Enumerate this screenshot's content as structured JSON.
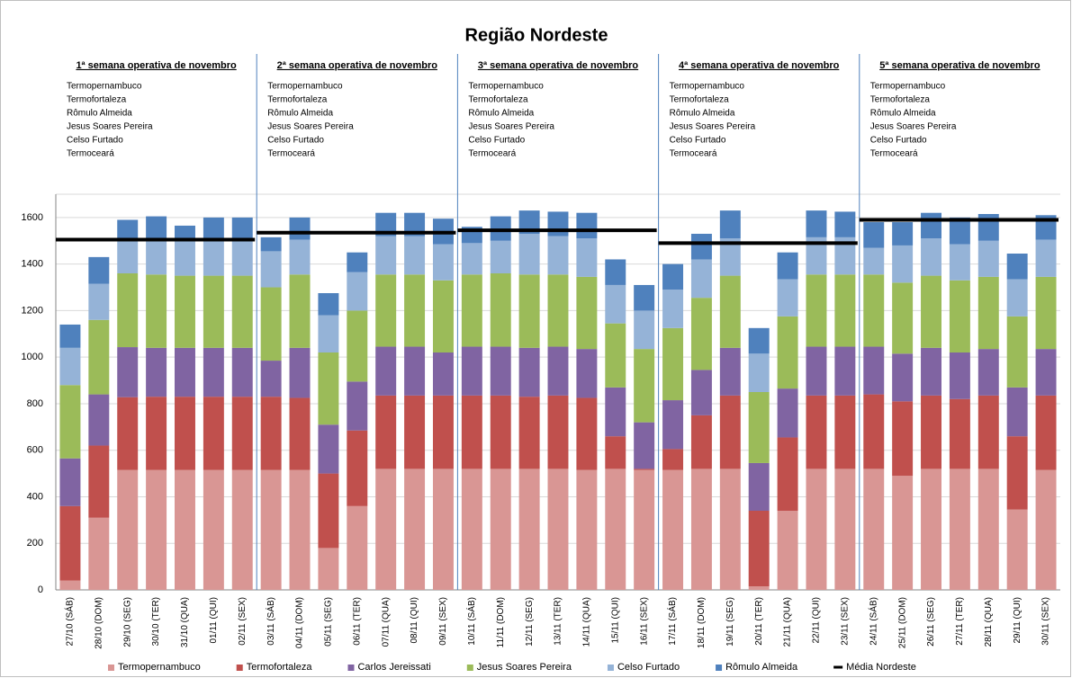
{
  "chart_data": {
    "type": "stacked_bar",
    "title": "Região Nordeste",
    "categories": [
      "27/10 (SÁB)",
      "28/10 (DOM)",
      "29/10 (SEG)",
      "30/10 (TER)",
      "31/10 (QUA)",
      "01/11 (QUI)",
      "02/11 (SEX)",
      "03/11 (SÁB)",
      "04/11 (DOM)",
      "05/11 (SEG)",
      "06/11 (TER)",
      "07/11 (QUA)",
      "08/11 (QUI)",
      "09/11 (SEX)",
      "10/11 (SÁB)",
      "11/11 (DOM)",
      "12/11 (SEG)",
      "13/11 (TER)",
      "14/11 (QUA)",
      "15/11 (QUI)",
      "16/11 (SEX)",
      "17/11 (SÁB)",
      "18/11 (DOM)",
      "19/11 (SEG)",
      "20/11 (TER)",
      "21/11 (QUA)",
      "22/11 (QUI)",
      "23/11 (SEX)",
      "24/11 (SÁB)",
      "25/11 (DOM)",
      "26/11 (SEG)",
      "27/11 (TER)",
      "28/11 (QUA)",
      "29/11 (QUI)",
      "30/11 (SEX)"
    ],
    "series": [
      {
        "name": "Termopernambuco",
        "color": "#d99694",
        "values": [
          40,
          310,
          515,
          515,
          515,
          515,
          515,
          515,
          515,
          180,
          360,
          520,
          520,
          520,
          520,
          520,
          520,
          520,
          515,
          520,
          515,
          515,
          520,
          520,
          15,
          340,
          520,
          520,
          520,
          490,
          520,
          520,
          520,
          345,
          515
        ]
      },
      {
        "name": "Termofortaleza",
        "color": "#c0504d",
        "values": [
          320,
          310,
          313,
          315,
          315,
          315,
          315,
          315,
          310,
          320,
          325,
          315,
          315,
          315,
          315,
          315,
          310,
          315,
          310,
          140,
          5,
          90,
          230,
          315,
          325,
          315,
          315,
          315,
          320,
          320,
          315,
          300,
          315,
          315,
          320
        ]
      },
      {
        "name": "Carlos Jereissati",
        "color": "#8064a2",
        "values": [
          205,
          220,
          215,
          210,
          210,
          210,
          210,
          155,
          215,
          210,
          210,
          210,
          210,
          185,
          210,
          210,
          210,
          210,
          210,
          210,
          200,
          210,
          195,
          205,
          205,
          210,
          210,
          210,
          205,
          205,
          205,
          200,
          200,
          210,
          200
        ]
      },
      {
        "name": "Jesus Soares Pereira",
        "color": "#9bbb59",
        "values": [
          315,
          320,
          317,
          315,
          310,
          310,
          310,
          315,
          315,
          310,
          305,
          310,
          310,
          310,
          310,
          315,
          315,
          310,
          310,
          275,
          315,
          310,
          310,
          310,
          305,
          310,
          310,
          310,
          310,
          305,
          310,
          310,
          310,
          305,
          310
        ]
      },
      {
        "name": "Celso Furtado",
        "color": "#95b3d7",
        "values": [
          160,
          155,
          150,
          150,
          150,
          150,
          150,
          155,
          150,
          160,
          165,
          165,
          165,
          155,
          135,
          140,
          175,
          165,
          165,
          165,
          165,
          165,
          165,
          160,
          165,
          160,
          160,
          160,
          115,
          160,
          160,
          155,
          155,
          160,
          160
        ]
      },
      {
        "name": "Rômulo Almeida",
        "color": "#4f81bd",
        "values": [
          100,
          115,
          80,
          100,
          65,
          100,
          100,
          60,
          95,
          95,
          85,
          100,
          100,
          110,
          70,
          105,
          100,
          105,
          110,
          110,
          110,
          110,
          110,
          120,
          110,
          115,
          115,
          110,
          110,
          100,
          110,
          115,
          115,
          110,
          105
        ]
      }
    ],
    "average": {
      "name": "Média Nordeste",
      "color": "#000000",
      "values": [
        1505,
        1535,
        1545,
        1490,
        1590
      ]
    },
    "weeks": [
      {
        "title": "1ª semana operativa de novembro",
        "items": [
          "Termopernambuco",
          "Termofortaleza",
          "Rômulo Almeida",
          "Jesus Soares Pereira",
          "Celso Furtado",
          "Termoceará"
        ]
      },
      {
        "title": "2ª semana operativa de novembro",
        "items": [
          "Termopernambuco",
          "Termofortaleza",
          "Rômulo Almeida",
          "Jesus Soares Pereira",
          "Celso Furtado",
          "Termoceará"
        ]
      },
      {
        "title": "3ª semana operativa de novembro",
        "items": [
          "Termopernambuco",
          "Termofortaleza",
          "Rômulo Almeida",
          "Jesus Soares Pereira",
          "Celso Furtado",
          "Termoceará"
        ]
      },
      {
        "title": "4ª semana operativa de novembro",
        "items": [
          "Termopernambuco",
          "Termofortaleza",
          "Rômulo Almeida",
          "Jesus Soares Pereira",
          "Celso Furtado",
          "Termoceará"
        ]
      },
      {
        "title": "5ª semana operativa de novembro",
        "items": [
          "Termopernambuco",
          "Termofortaleza",
          "Rômulo Almeida",
          "Jesus Soares Pereira",
          "Celso Furtado",
          "Termoceará"
        ]
      }
    ],
    "ylim": [
      0,
      1700
    ],
    "yticks": [
      0,
      200,
      400,
      600,
      800,
      1000,
      1200,
      1400,
      1600
    ],
    "grid": true
  }
}
